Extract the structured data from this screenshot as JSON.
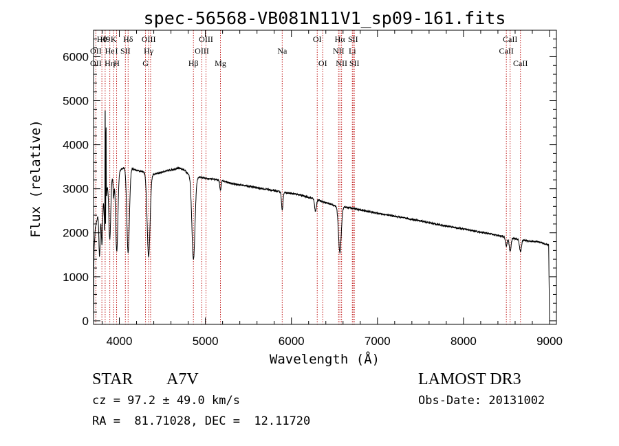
{
  "chart_data": {
    "type": "line",
    "title": "spec-56568-VB081N11V1_sp09-161.fits",
    "xlabel": "Wavelength (Å)",
    "ylabel": "Flux (relative)",
    "xlim": [
      3700,
      9080
    ],
    "ylim": [
      -80,
      6600
    ],
    "xticks": [
      4000,
      5000,
      6000,
      7000,
      8000,
      9000
    ],
    "yticks": [
      0,
      1000,
      2000,
      3000,
      4000,
      5000,
      6000
    ],
    "grid": false,
    "spectrum": {
      "continuum": [
        [
          3700,
          0
        ],
        [
          3705,
          1600
        ],
        [
          3720,
          2100
        ],
        [
          3750,
          2400
        ],
        [
          3800,
          2800
        ],
        [
          3850,
          3050
        ],
        [
          3900,
          3250
        ],
        [
          3950,
          3350
        ],
        [
          4000,
          3420
        ],
        [
          4050,
          3480
        ],
        [
          4100,
          3500
        ],
        [
          4150,
          3460
        ],
        [
          4200,
          3420
        ],
        [
          4300,
          3380
        ],
        [
          4400,
          3330
        ],
        [
          4500,
          3380
        ],
        [
          4600,
          3430
        ],
        [
          4700,
          3470
        ],
        [
          4760,
          3420
        ],
        [
          4800,
          3330
        ],
        [
          4900,
          3270
        ],
        [
          5000,
          3240
        ],
        [
          5100,
          3220
        ],
        [
          5200,
          3180
        ],
        [
          5300,
          3120
        ],
        [
          5500,
          3060
        ],
        [
          5700,
          2990
        ],
        [
          5900,
          2920
        ],
        [
          6100,
          2860
        ],
        [
          6300,
          2750
        ],
        [
          6500,
          2620
        ],
        [
          6700,
          2560
        ],
        [
          6900,
          2480
        ],
        [
          7100,
          2410
        ],
        [
          7300,
          2340
        ],
        [
          7500,
          2270
        ],
        [
          7700,
          2190
        ],
        [
          7900,
          2120
        ],
        [
          8100,
          2050
        ],
        [
          8300,
          1980
        ],
        [
          8500,
          1900
        ],
        [
          8700,
          1830
        ],
        [
          8900,
          1780
        ],
        [
          8990,
          1720
        ],
        [
          9000,
          20
        ]
      ],
      "absorption_lines": [
        {
          "center": 3770,
          "depth": 1100,
          "width": 8
        },
        {
          "center": 3798,
          "depth": 1050,
          "width": 8
        },
        {
          "center": 3835,
          "depth": 1200,
          "width": 9
        },
        {
          "center": 3889,
          "depth": 1350,
          "width": 11
        },
        {
          "center": 3933,
          "depth": 500,
          "width": 6
        },
        {
          "center": 3970,
          "depth": 1800,
          "width": 13
        },
        {
          "center": 4102,
          "depth": 1950,
          "width": 15
        },
        {
          "center": 4340,
          "depth": 1900,
          "width": 17
        },
        {
          "center": 4861,
          "depth": 1900,
          "width": 18
        },
        {
          "center": 5175,
          "depth": 220,
          "width": 8
        },
        {
          "center": 5893,
          "depth": 420,
          "width": 8
        },
        {
          "center": 6280,
          "depth": 280,
          "width": 10
        },
        {
          "center": 6563,
          "depth": 1050,
          "width": 16
        },
        {
          "center": 8498,
          "depth": 200,
          "width": 10
        },
        {
          "center": 8542,
          "depth": 300,
          "width": 11
        },
        {
          "center": 8662,
          "depth": 270,
          "width": 11
        }
      ],
      "spikes": [
        {
          "center": 3835,
          "height": 3400,
          "width": 2
        },
        {
          "center": 3845,
          "height": 2200,
          "width": 2
        }
      ]
    },
    "line_markers": [
      {
        "x": 3797,
        "label": "Hθ",
        "row": 0
      },
      {
        "x": 3835,
        "label": "H9",
        "row": 0
      },
      {
        "x": 3934,
        "label": "K",
        "row": 0
      },
      {
        "x": 4102,
        "label": "Hδ",
        "row": 0
      },
      {
        "x": 4341,
        "label": "OIII",
        "row": 0
      },
      {
        "x": 5007,
        "label": "OIII",
        "row": 0
      },
      {
        "x": 6300,
        "label": "OI",
        "row": 0
      },
      {
        "x": 6563,
        "label": "Hα",
        "row": 0
      },
      {
        "x": 6716,
        "label": "SII",
        "row": 0
      },
      {
        "x": 8542,
        "label": "CaII",
        "row": 0
      },
      {
        "x": 3727,
        "label": "OII",
        "row": 1
      },
      {
        "x": 3889,
        "label": "He",
        "row": 1
      },
      {
        "x": 3968,
        "label": "I",
        "row": 1
      },
      {
        "x": 4070,
        "label": "SII",
        "row": 1
      },
      {
        "x": 4340,
        "label": "Hγ",
        "row": 1
      },
      {
        "x": 4959,
        "label": "OIII",
        "row": 1
      },
      {
        "x": 5893,
        "label": "Na",
        "row": 1
      },
      {
        "x": 6548,
        "label": "NII",
        "row": 1
      },
      {
        "x": 6708,
        "label": "Li",
        "row": 1
      },
      {
        "x": 8498,
        "label": "CaII",
        "row": 1
      },
      {
        "x": 3727,
        "label": "OII",
        "row": 2
      },
      {
        "x": 3889,
        "label": "Hη",
        "row": 2
      },
      {
        "x": 3968,
        "label": "H",
        "row": 2
      },
      {
        "x": 4304,
        "label": "G",
        "row": 2
      },
      {
        "x": 4861,
        "label": "Hβ",
        "row": 2
      },
      {
        "x": 5175,
        "label": "Mg",
        "row": 2
      },
      {
        "x": 6364,
        "label": "OI",
        "row": 2
      },
      {
        "x": 6583,
        "label": "NII",
        "row": 2
      },
      {
        "x": 6731,
        "label": "SII",
        "row": 2
      },
      {
        "x": 8662,
        "label": "CaII",
        "row": 2
      }
    ],
    "marker_positions": [
      3727,
      3797,
      3835,
      3889,
      3934,
      3968,
      4070,
      4102,
      4304,
      4341,
      4363,
      4861,
      4959,
      5007,
      5175,
      5893,
      6300,
      6364,
      6548,
      6563,
      6583,
      6708,
      6716,
      6731,
      8498,
      8542,
      8662
    ],
    "colors": {
      "axis": "#000000",
      "spectrum": "#000000",
      "marker": "#c01818"
    }
  },
  "footer": {
    "object_type": "STAR",
    "subclass": "A7V",
    "survey": "LAMOST DR3",
    "redshift": "cz = 97.2 ± 49.0 km/s",
    "obs_date": "Obs-Date: 20131002",
    "coords": "RA =  81.71028, DEC =  12.11720"
  }
}
